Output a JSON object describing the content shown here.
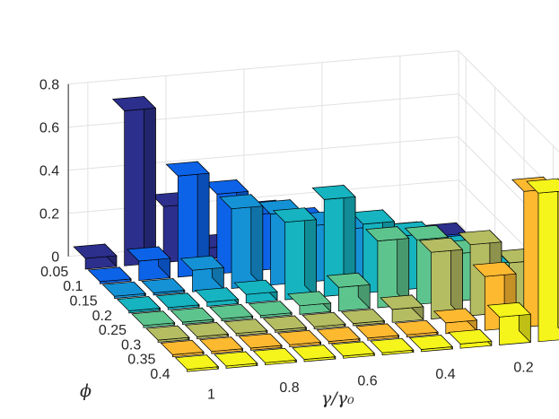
{
  "chart_data": {
    "type": "bar3",
    "xlabel": "γ/γ₀",
    "ylabel": "ϕ",
    "zlabel": "",
    "z_ticks": [
      "0",
      "0.2",
      "0.4",
      "0.6",
      "0.8"
    ],
    "zlim": [
      0,
      0.8
    ],
    "phi": [
      "0.05",
      "0.1",
      "0.15",
      "0.2",
      "0.25",
      "0.3",
      "0.35",
      "0.4"
    ],
    "gamma": [
      "1",
      "0.9",
      "0.8",
      "0.7",
      "0.6",
      "0.5",
      "0.4",
      "0.3",
      "0.2",
      "0.1"
    ],
    "x_tick_labels": [
      "1",
      "0.8",
      "0.6",
      "0.4",
      "0.2"
    ],
    "colors": [
      "#2c2f8c",
      "#0d63e8",
      "#1592d6",
      "#16b3c0",
      "#5ec48e",
      "#b5bd62",
      "#fdb930",
      "#f5f51b"
    ],
    "values": [
      [
        0.05,
        0.72,
        0.26,
        0.05,
        0.03,
        0.02,
        0.05,
        0.02,
        0.03,
        0.01
      ],
      [
        0.01,
        0.09,
        0.47,
        0.37,
        0.26,
        0.21,
        0.11,
        0.08,
        0.06,
        0.03
      ],
      [
        0.01,
        0.01,
        0.1,
        0.37,
        0.33,
        0.26,
        0.23,
        0.14,
        0.1,
        0.05
      ],
      [
        0.01,
        0.01,
        0.02,
        0.04,
        0.36,
        0.45,
        0.32,
        0.25,
        0.17,
        0.07
      ],
      [
        0.01,
        0.01,
        0.01,
        0.01,
        0.04,
        0.11,
        0.31,
        0.3,
        0.22,
        0.1
      ],
      [
        0.01,
        0.01,
        0.01,
        0.01,
        0.01,
        0.01,
        0.06,
        0.31,
        0.33,
        0.23
      ],
      [
        0.01,
        0.01,
        0.01,
        0.01,
        0.01,
        0.01,
        0.01,
        0.05,
        0.25,
        0.63
      ],
      [
        0.01,
        0.01,
        0.01,
        0.01,
        0.01,
        0.01,
        0.01,
        0.02,
        0.13,
        0.69
      ]
    ]
  }
}
